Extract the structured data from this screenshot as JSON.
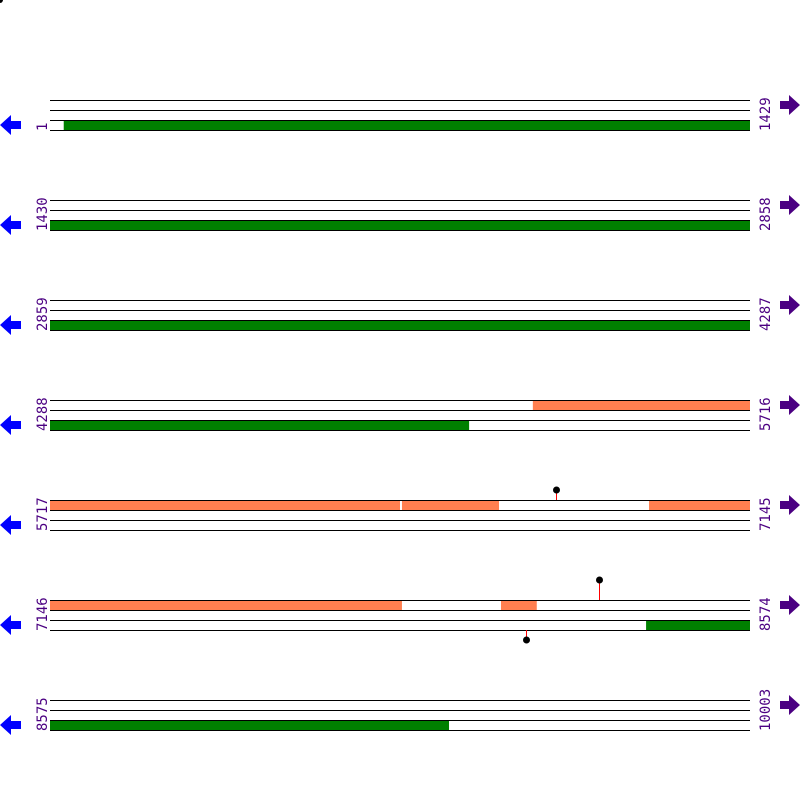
{
  "colors": {
    "forward_feature": "#ff7f50",
    "reverse_feature": "#008000",
    "start_label": "#4b0082",
    "end_label": "#4b0082",
    "left_arrow": "#0000ff",
    "right_arrow": "#4b0082",
    "stem": "#ff0000",
    "marker": "#000000"
  },
  "icons": {
    "left": "arrow-left-icon",
    "right": "arrow-right-icon"
  },
  "rows": [
    {
      "start": "1",
      "end": "1429",
      "s": 1,
      "e": 1429,
      "top": [],
      "bottom": [
        [
          29,
          1429
        ]
      ],
      "markers": []
    },
    {
      "start": "1430",
      "end": "2858",
      "s": 1430,
      "e": 2858,
      "top": [],
      "bottom": [
        [
          1430,
          2858
        ]
      ],
      "markers": []
    },
    {
      "start": "2859",
      "end": "4287",
      "s": 2859,
      "e": 4287,
      "top": [],
      "bottom": [
        [
          2859,
          4287
        ]
      ],
      "markers": []
    },
    {
      "start": "4288",
      "end": "5716",
      "s": 4288,
      "e": 5716,
      "top": [
        [
          5273,
          5716
        ]
      ],
      "bottom": [
        [
          4288,
          5143
        ]
      ],
      "markers": []
    },
    {
      "start": "5717",
      "end": "7145",
      "s": 5717,
      "e": 7145,
      "top": [
        [
          5717,
          6431
        ],
        [
          6435,
          6633
        ],
        [
          6939,
          7145
        ]
      ],
      "bottom": [],
      "markers": [
        {
          "pos": 6749,
          "strand": "top",
          "len": 10
        }
      ]
    },
    {
      "start": "7146",
      "end": "8574",
      "s": 7146,
      "e": 8574,
      "top": [
        [
          7146,
          7864
        ],
        [
          8066,
          8139
        ]
      ],
      "bottom": [
        [
          8362,
          8574
        ]
      ],
      "markers": [
        {
          "pos": 8266,
          "strand": "top",
          "len": 20
        },
        {
          "pos": 8117,
          "strand": "bottom",
          "len": 10
        }
      ]
    },
    {
      "start": "8575",
      "end": "10003",
      "s": 8575,
      "e": 10003,
      "top": [],
      "bottom": [
        [
          8575,
          9389
        ]
      ],
      "markers": []
    }
  ]
}
